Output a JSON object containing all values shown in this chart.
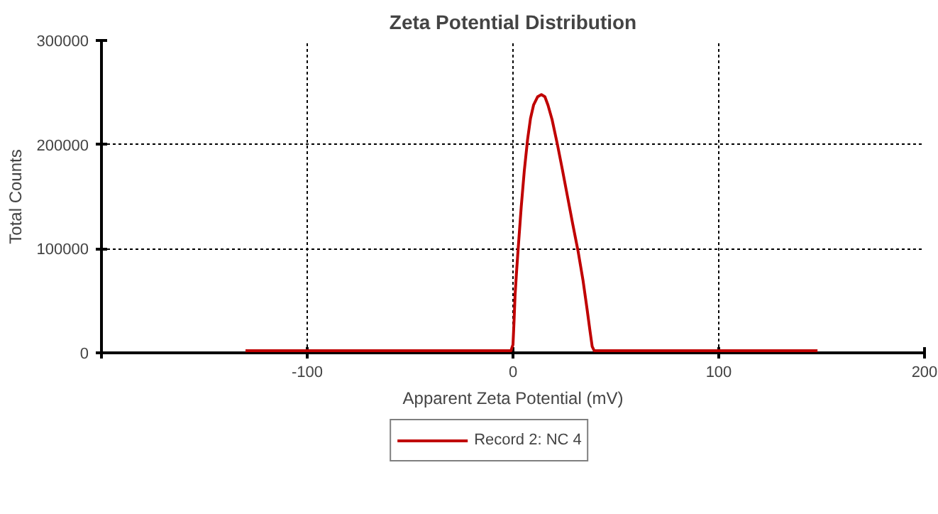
{
  "chart_data": {
    "type": "line",
    "title": "Zeta Potential Distribution",
    "xlabel": "Apparent Zeta Potential (mV)",
    "ylabel": "Total Counts",
    "x": [
      -130,
      -1,
      0,
      0.5,
      1,
      1.8,
      2.7,
      4,
      5.5,
      7.1,
      8.5,
      10,
      12,
      13.8,
      15.5,
      17,
      19,
      21.6,
      24,
      26.5,
      29,
      31.6,
      34,
      36,
      37.5,
      38.5,
      39.5,
      148
    ],
    "series": [
      {
        "name": "Record 2: NC 4",
        "color": "#c00000",
        "values": [
          2000,
          2000,
          8000,
          30000,
          55000,
          80000,
          105000,
          140000,
          175000,
          205000,
          225000,
          238000,
          246000,
          248000,
          246000,
          238000,
          224000,
          200000,
          176000,
          150000,
          124000,
          98000,
          70000,
          42000,
          20000,
          6000,
          2000,
          2000
        ]
      }
    ],
    "xlim": [
      -200,
      200
    ],
    "xticks": [
      {
        "value": -200,
        "label": null
      },
      -100,
      0,
      100,
      200
    ],
    "ylim": [
      0,
      300000
    ],
    "yticks": [
      0,
      100000,
      200000,
      300000
    ],
    "grid": true,
    "legend": "bottom",
    "line_style": "solid"
  }
}
